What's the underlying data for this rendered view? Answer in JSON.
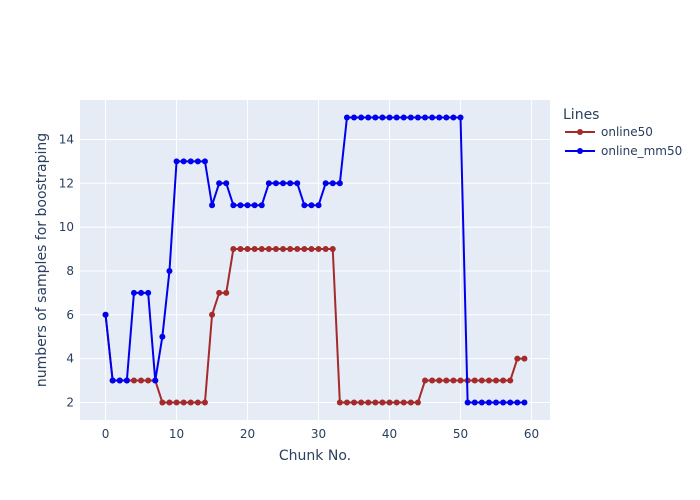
{
  "chart_data": {
    "type": "line",
    "xlabel": "Chunk No.",
    "ylabel": "numbers of samples for boostraping",
    "xlim": [
      -3.6,
      62.6
    ],
    "ylim": [
      1.2,
      15.8
    ],
    "xticks": [
      0,
      10,
      20,
      30,
      40,
      50,
      60
    ],
    "yticks": [
      2,
      4,
      6,
      8,
      10,
      12,
      14
    ],
    "grid": true,
    "legend": {
      "title": "Lines",
      "position": "right"
    },
    "x": [
      0,
      1,
      2,
      3,
      4,
      5,
      6,
      7,
      8,
      9,
      10,
      11,
      12,
      13,
      14,
      15,
      16,
      17,
      18,
      19,
      20,
      21,
      22,
      23,
      24,
      25,
      26,
      27,
      28,
      29,
      30,
      31,
      32,
      33,
      34,
      35,
      36,
      37,
      38,
      39,
      40,
      41,
      42,
      43,
      44,
      45,
      46,
      47,
      48,
      49,
      50,
      51,
      52,
      53,
      54,
      55,
      56,
      57,
      58,
      59
    ],
    "series": [
      {
        "name": "online50",
        "color": "#a52a2a",
        "values": [
          6,
          3,
          3,
          3,
          3,
          3,
          3,
          3,
          2,
          2,
          2,
          2,
          2,
          2,
          2,
          6,
          7,
          7,
          9,
          9,
          9,
          9,
          9,
          9,
          9,
          9,
          9,
          9,
          9,
          9,
          9,
          9,
          9,
          2,
          2,
          2,
          2,
          2,
          2,
          2,
          2,
          2,
          2,
          2,
          2,
          3,
          3,
          3,
          3,
          3,
          3,
          3,
          3,
          3,
          3,
          3,
          3,
          3,
          4,
          4
        ]
      },
      {
        "name": "online_mm50",
        "color": "#0000ee",
        "values": [
          6,
          3,
          3,
          3,
          7,
          7,
          7,
          3,
          5,
          8,
          13,
          13,
          13,
          13,
          13,
          11,
          12,
          12,
          11,
          11,
          11,
          11,
          11,
          12,
          12,
          12,
          12,
          12,
          11,
          11,
          11,
          12,
          12,
          12,
          15,
          15,
          15,
          15,
          15,
          15,
          15,
          15,
          15,
          15,
          15,
          15,
          15,
          15,
          15,
          15,
          15,
          2,
          2,
          2,
          2,
          2,
          2,
          2,
          2,
          2
        ]
      }
    ]
  }
}
